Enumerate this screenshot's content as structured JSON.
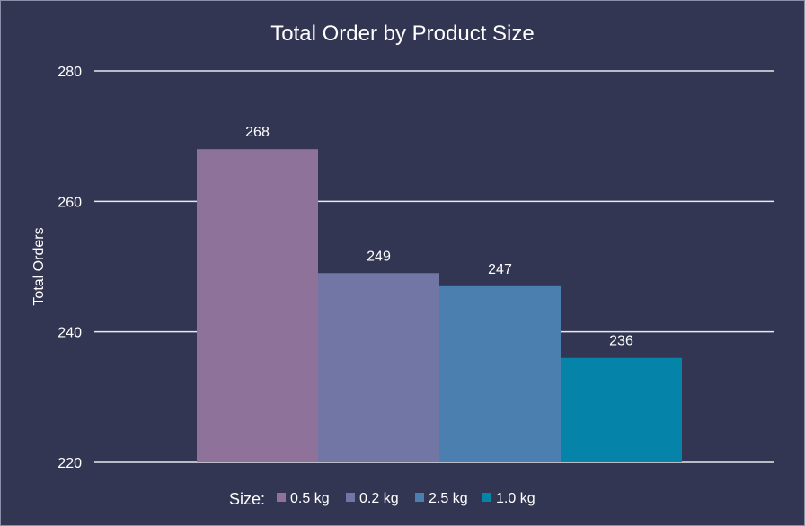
{
  "chart_data": {
    "type": "bar",
    "title": "Total Order by Product Size",
    "ylabel": "Total Orders",
    "xlabel": "",
    "ylim": [
      220,
      280
    ],
    "yticks": [
      220,
      240,
      260,
      280
    ],
    "grid": true,
    "legend_title": "Size:",
    "legend_position": "bottom",
    "categories": [
      "0.5 kg",
      "0.2 kg",
      "2.5 kg",
      "1.0 kg"
    ],
    "values": [
      268,
      249,
      247,
      236
    ],
    "data_labels": [
      "268",
      "249",
      "247",
      "236"
    ],
    "colors": [
      "#8f7299",
      "#7276a5",
      "#4a7fb0",
      "#0583a8"
    ]
  }
}
